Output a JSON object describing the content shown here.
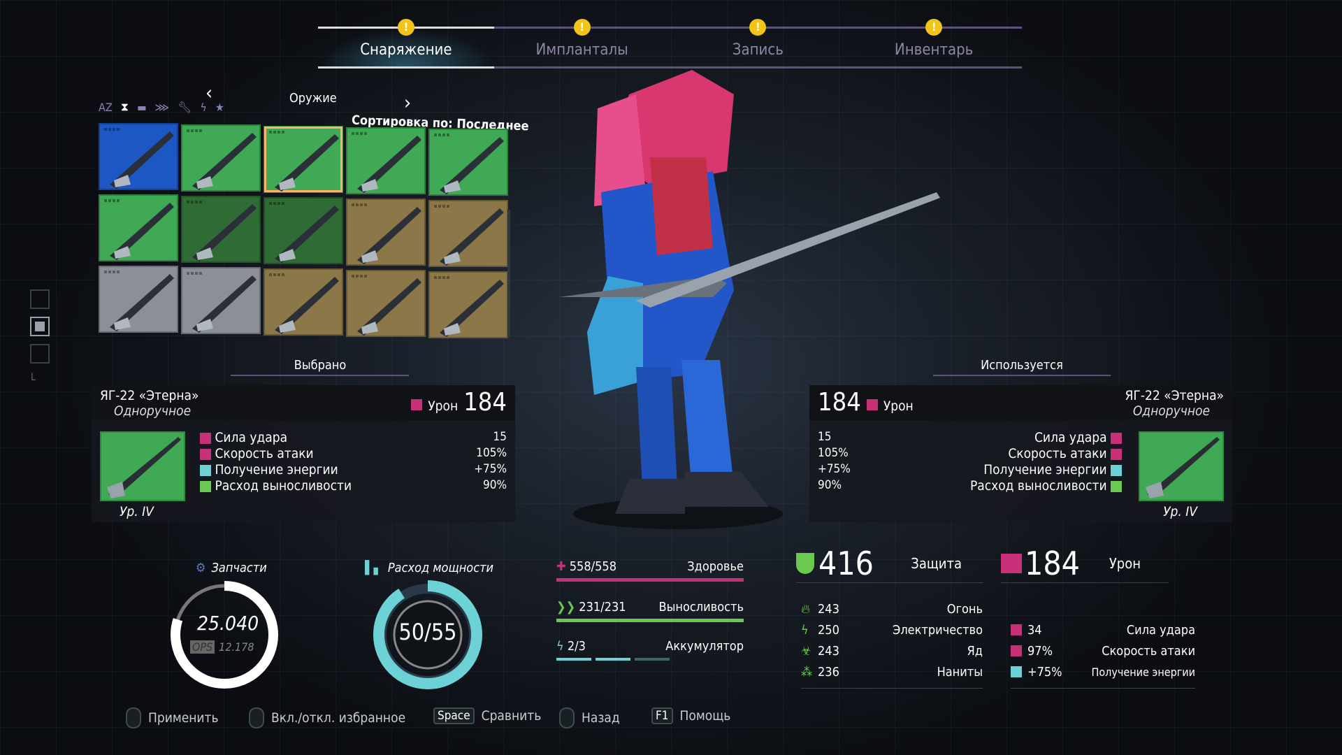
{
  "tabs": [
    {
      "label": "Снаряжение",
      "active": true,
      "alert": "!"
    },
    {
      "label": "Импланталы",
      "alert": "!"
    },
    {
      "label": "Запись",
      "alert": "!"
    },
    {
      "label": "Инвентарь",
      "alert": "!"
    }
  ],
  "filter": {
    "category": "Оружие",
    "sort_label": "Сортировка по: Последнее",
    "sort_icons": [
      "az-sort-icon",
      "hourglass-icon",
      "box-icon",
      "damage-icon",
      "wrench-icon",
      "energy-icon",
      "star-icon"
    ],
    "az_label": "AZ"
  },
  "grid": {
    "tiles": [
      {
        "rarity": "blue",
        "item": "axe"
      },
      {
        "rarity": "green",
        "item": "arm-gauntlets"
      },
      {
        "rarity": "green",
        "item": "katana",
        "selected": true
      },
      {
        "rarity": "green",
        "item": "blade-launcher"
      },
      {
        "rarity": "green",
        "item": "purple-claw"
      },
      {
        "rarity": "green",
        "item": "flame-blade"
      },
      {
        "rarity": "darkgreen",
        "item": "serrated-knife"
      },
      {
        "rarity": "darkgreen",
        "item": "chainsaw"
      },
      {
        "rarity": "gold",
        "item": "spear"
      },
      {
        "rarity": "gold",
        "item": "mace-sword"
      },
      {
        "rarity": "gray",
        "item": "long-blade"
      },
      {
        "rarity": "gray",
        "item": "electro-staff"
      },
      {
        "rarity": "gold",
        "item": "blue-hammer"
      },
      {
        "rarity": "gold",
        "item": "ring-staff"
      },
      {
        "rarity": "gold",
        "item": "claw-gauntlet"
      }
    ],
    "colors": {
      "blue": "#1d57c4",
      "green": "#3fa955",
      "darkgreen": "#2f6b35",
      "gold": "#8b7747",
      "gray": "#8d8f98"
    }
  },
  "selected": {
    "label": "Выбрано",
    "name": "ЯГ-22 «Этерна»",
    "type": "Однорučное",
    "damage_label": "Урон",
    "damage": "184",
    "level": "Ур. IV",
    "stats": [
      {
        "label": "Сила удара",
        "value": "15"
      },
      {
        "label": "Скорость атаки",
        "value": "105%"
      },
      {
        "label": "Получение энергии",
        "value": "+75%"
      },
      {
        "label": "Расход выносливости",
        "value": "90%"
      }
    ]
  },
  "equipped": {
    "label": "Используется",
    "name": "ЯГ-22 «Этерна»",
    "type": "Одноручное",
    "damage_label": "Урон",
    "damage": "184",
    "level": "Ур. IV",
    "stats": [
      {
        "label": "Сила удара",
        "value": "15"
      },
      {
        "label": "Скорость атаки",
        "value": "105%"
      },
      {
        "label": "Получение энергии",
        "value": "+75%"
      },
      {
        "label": "Расход выносливости",
        "value": "90%"
      }
    ]
  },
  "parts": {
    "label": "Запчасти",
    "value": "25.040",
    "ops_label": "OPS",
    "ops": "12.178",
    "fill": 0.8
  },
  "power": {
    "label": "Расход мощности",
    "value": "50/55",
    "fill": 0.91
  },
  "health": {
    "label": "Здоровье",
    "value": "558/558",
    "fill": 1
  },
  "stamina": {
    "label": "Выносливость",
    "value": "231/231",
    "fill": 1
  },
  "battery": {
    "label": "Аккумулятор",
    "value": "2/3",
    "filled": 2,
    "total": 3
  },
  "defense": {
    "value": "416",
    "label": "Защита",
    "resist": [
      {
        "icon": "fire-icon",
        "value": "243",
        "label": "Огонь"
      },
      {
        "icon": "lightning-icon",
        "value": "250",
        "label": "Электричество"
      },
      {
        "icon": "biohazard-icon",
        "value": "243",
        "label": "Яд"
      },
      {
        "icon": "nanites-icon",
        "value": "236",
        "label": "Наниты"
      }
    ]
  },
  "damage": {
    "value": "184",
    "label": "Урон",
    "stats": [
      {
        "value": "34",
        "label": "Сила удара"
      },
      {
        "value": "97%",
        "label": "Скорость атаки"
      },
      {
        "value": "+75%",
        "label": "Получение энергии"
      }
    ]
  },
  "hints": [
    {
      "key": "mouse-left",
      "label": "Применить"
    },
    {
      "key": "mouse-middle",
      "label": "Вкл./откл. избранное"
    },
    {
      "key": "Space",
      "label": "Сравнить"
    },
    {
      "key": "mouse-right",
      "label": "Назад"
    },
    {
      "key": "F1",
      "label": "Помощь"
    }
  ],
  "colors": {
    "accent_pink": "#c8307a",
    "accent_green": "#6cc94f",
    "accent_cyan": "#6dd2d6",
    "alert": "#f0c419",
    "tab_line": "#5b5478"
  }
}
